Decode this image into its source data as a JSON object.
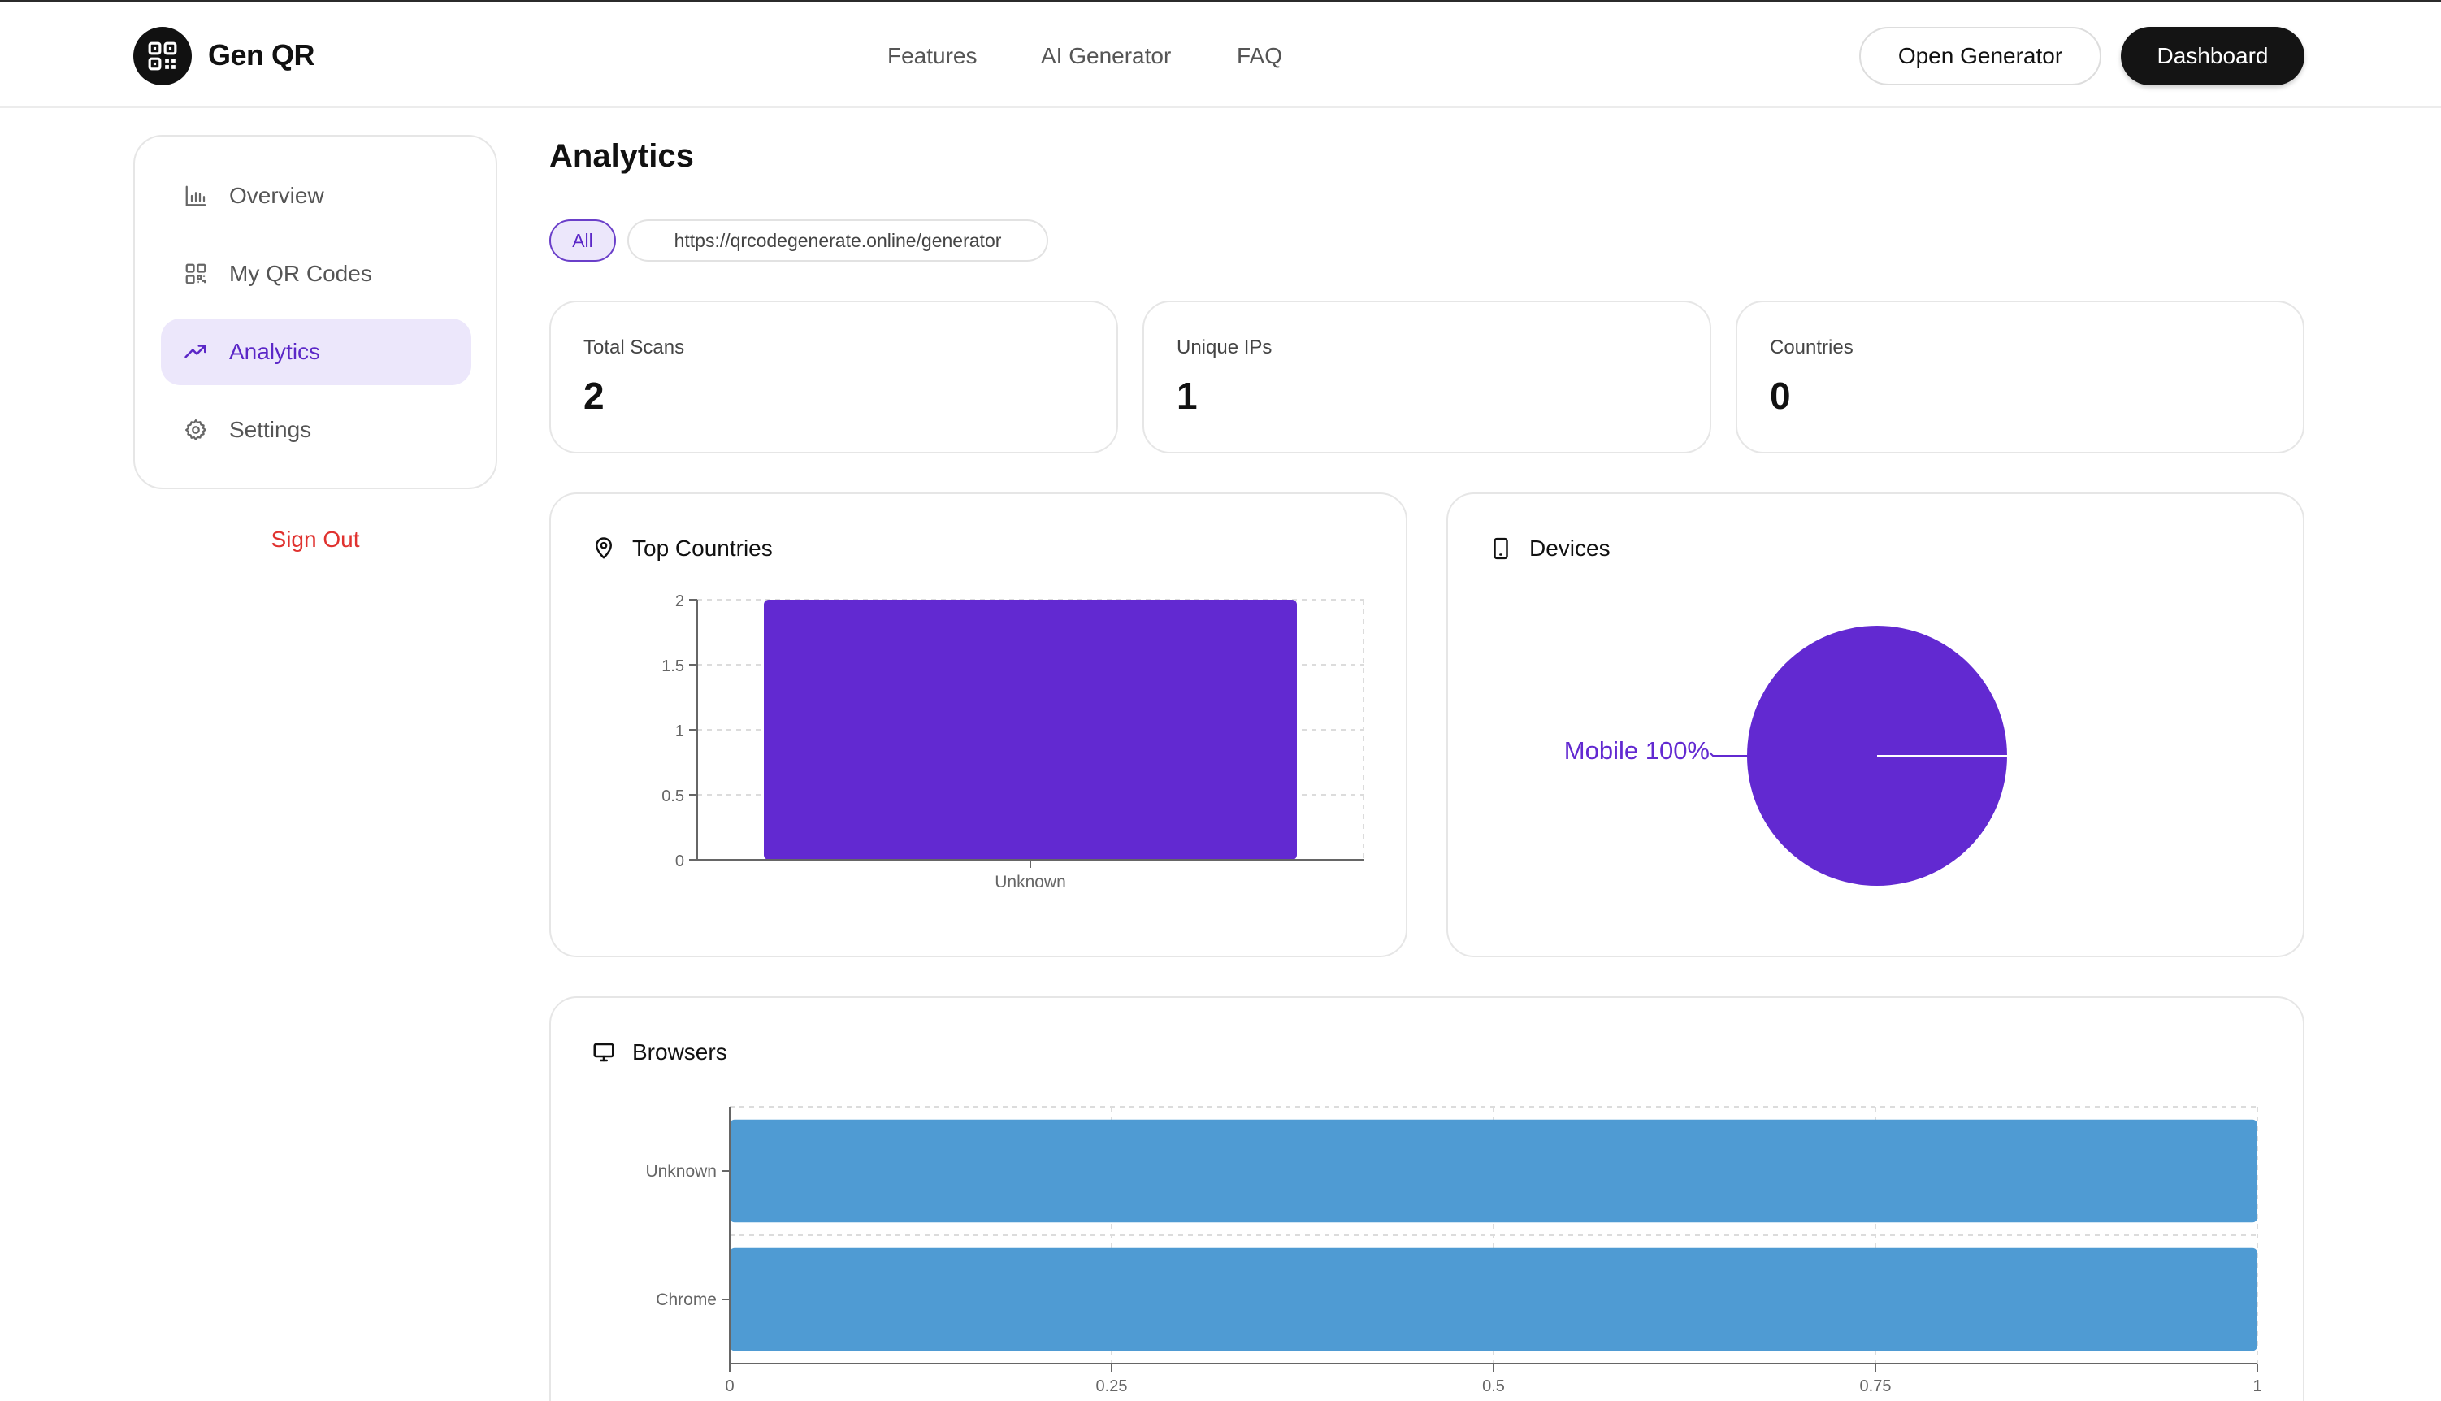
{
  "header": {
    "brand": "Gen QR",
    "nav": [
      "Features",
      "AI Generator",
      "FAQ"
    ],
    "open_generator": "Open Generator",
    "dashboard": "Dashboard"
  },
  "sidebar": {
    "items": [
      {
        "label": "Overview",
        "icon": "bar-chart-icon"
      },
      {
        "label": "My QR Codes",
        "icon": "qr-code-icon"
      },
      {
        "label": "Analytics",
        "icon": "trending-up-icon",
        "active": true
      },
      {
        "label": "Settings",
        "icon": "gear-icon"
      }
    ],
    "sign_out": "Sign Out"
  },
  "main": {
    "title": "Analytics",
    "filters": {
      "all": "All",
      "url": "https://qrcodegenerate.online/generator",
      "selected": "All"
    },
    "stats": [
      {
        "label": "Total Scans",
        "value": "2"
      },
      {
        "label": "Unique IPs",
        "value": "1"
      },
      {
        "label": "Countries",
        "value": "0"
      }
    ],
    "cards": {
      "top_countries": "Top Countries",
      "devices": "Devices",
      "browsers": "Browsers"
    }
  },
  "colors": {
    "accent": "#6229d1",
    "accent_light": "#ece7fb",
    "browser_bar": "#4f9bd3",
    "sign_out": "#e0322f"
  },
  "chart_data": [
    {
      "type": "bar",
      "categories": [
        "Unknown"
      ],
      "values": [
        2
      ],
      "ylim": [
        0,
        2
      ],
      "yticks": [
        "0",
        "0.5",
        "1",
        "1.5",
        "2"
      ],
      "grid": true,
      "color": "#6229d1"
    },
    {
      "type": "pie",
      "labels": [
        "Mobile"
      ],
      "values": [
        100
      ],
      "data_labels": [
        "Mobile 100%"
      ],
      "color": "#6229d1"
    },
    {
      "type": "bar",
      "orientation": "horizontal",
      "categories": [
        "Unknown",
        "Chrome"
      ],
      "values": [
        1,
        1
      ],
      "xlim": [
        0,
        1
      ],
      "xticks": [
        "0",
        "0.25",
        "0.5",
        "0.75",
        "1"
      ],
      "grid": true,
      "color": "#4f9bd3"
    }
  ]
}
